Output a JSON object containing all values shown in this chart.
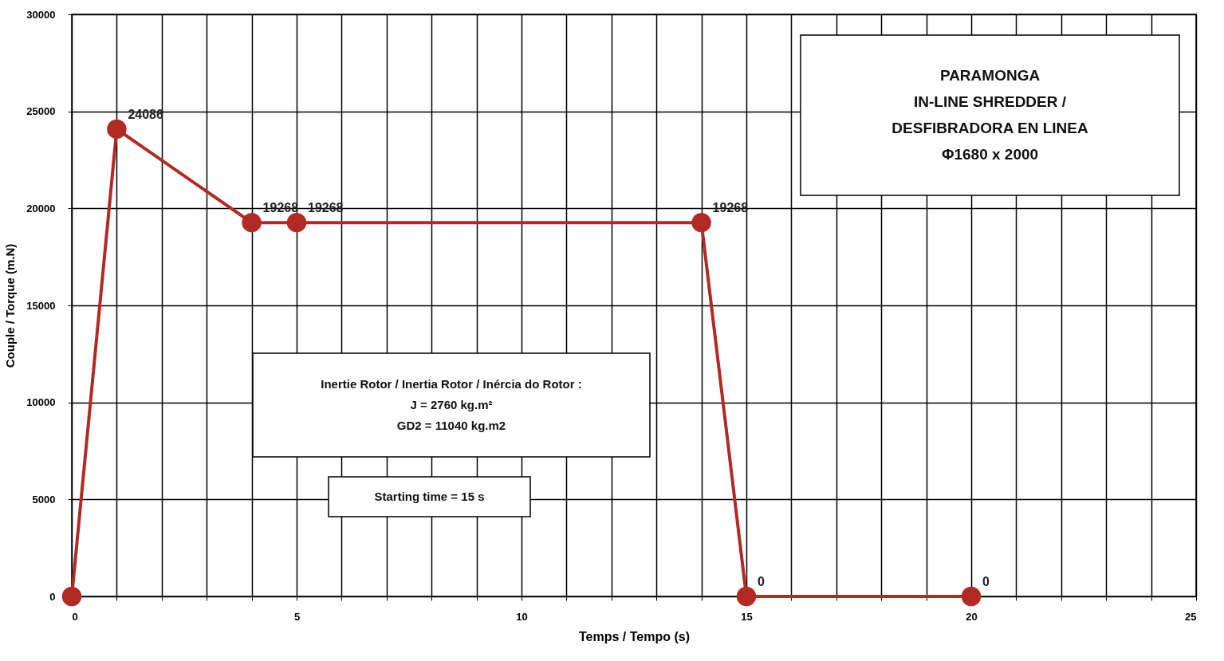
{
  "chart_data": {
    "type": "line",
    "xlabel": "Temps / Tempo (s)",
    "ylabel": "Couple / Torque (m.N)",
    "x": [
      0,
      1,
      4,
      5,
      14,
      15,
      20
    ],
    "series": [
      {
        "color": "#b22a24",
        "values": [
          0,
          24086,
          19268,
          19268,
          19268,
          0,
          0
        ]
      }
    ],
    "value_labels": [
      null,
      "24086",
      "19268",
      "19268",
      "19268",
      "0",
      "0"
    ],
    "xlim": [
      0,
      25
    ],
    "ylim": [
      0,
      30000
    ],
    "xticks": [
      0,
      {
        "value": 1,
        "label": null
      },
      {
        "value": 2,
        "label": null
      },
      {
        "value": 3,
        "label": null
      },
      {
        "value": 4,
        "label": null
      },
      5,
      {
        "value": 6,
        "label": null
      },
      {
        "value": 7,
        "label": null
      },
      {
        "value": 8,
        "label": null
      },
      {
        "value": 9,
        "label": null
      },
      10,
      {
        "value": 11,
        "label": null
      },
      {
        "value": 12,
        "label": null
      },
      {
        "value": 13,
        "label": null
      },
      {
        "value": 14,
        "label": null
      },
      15,
      {
        "value": 16,
        "label": null
      },
      {
        "value": 17,
        "label": null
      },
      {
        "value": 18,
        "label": null
      },
      {
        "value": 19,
        "label": null
      },
      20,
      {
        "value": 21,
        "label": null
      },
      {
        "value": 22,
        "label": null
      },
      {
        "value": 23,
        "label": null
      },
      {
        "value": 24,
        "label": null
      },
      25
    ],
    "yticks": [
      0,
      5000,
      10000,
      15000,
      20000,
      25000,
      30000
    ],
    "grid": true,
    "marker": "circle",
    "annotations": [
      "PARAMONGA\nIN-LINE SHREDDER /\nDESFIBRADORA EN LINEA\nΦ1680 x 2000",
      "Inertie Rotor / Inertia Rotor / Inércia do Rotor :\nJ = 2760 kg.m²\nGD2 = 11040 kg.m2",
      "Starting time = 15 s"
    ]
  }
}
